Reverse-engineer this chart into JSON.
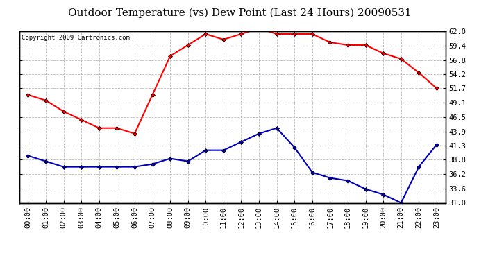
{
  "title": "Outdoor Temperature (vs) Dew Point (Last 24 Hours) 20090531",
  "copyright_text": "Copyright 2009 Cartronics.com",
  "hours": [
    0,
    1,
    2,
    3,
    4,
    5,
    6,
    7,
    8,
    9,
    10,
    11,
    12,
    13,
    14,
    15,
    16,
    17,
    18,
    19,
    20,
    21,
    22,
    23
  ],
  "hour_labels": [
    "00:00",
    "01:00",
    "02:00",
    "03:00",
    "04:00",
    "05:00",
    "06:00",
    "07:00",
    "08:00",
    "09:00",
    "10:00",
    "11:00",
    "12:00",
    "13:00",
    "14:00",
    "15:00",
    "16:00",
    "17:00",
    "18:00",
    "19:00",
    "20:00",
    "21:00",
    "22:00",
    "23:00"
  ],
  "temp_red": [
    50.5,
    49.5,
    47.5,
    46.0,
    44.5,
    44.5,
    43.5,
    50.5,
    57.5,
    59.5,
    61.5,
    60.5,
    61.5,
    62.5,
    61.5,
    61.5,
    61.5,
    60.0,
    59.5,
    59.5,
    58.0,
    57.0,
    54.5,
    51.7
  ],
  "dewpoint_blue": [
    39.5,
    38.5,
    37.5,
    37.5,
    37.5,
    37.5,
    37.5,
    38.0,
    39.0,
    38.5,
    40.5,
    40.5,
    42.0,
    43.5,
    44.5,
    41.0,
    36.5,
    35.5,
    35.0,
    33.5,
    32.5,
    31.0,
    37.5,
    41.5
  ],
  "ylim": [
    31.0,
    62.0
  ],
  "yticks": [
    31.0,
    33.6,
    36.2,
    38.8,
    41.3,
    43.9,
    46.5,
    49.1,
    51.7,
    54.2,
    56.8,
    59.4,
    62.0
  ],
  "temp_color": "#ff0000",
  "dew_color": "#0000bb",
  "bg_color": "#ffffff",
  "plot_bg_color": "#ffffff",
  "grid_color": "#bbbbbb",
  "title_fontsize": 11,
  "tick_fontsize": 7.5,
  "marker": "D",
  "marker_size": 3.0,
  "line_width": 1.5
}
